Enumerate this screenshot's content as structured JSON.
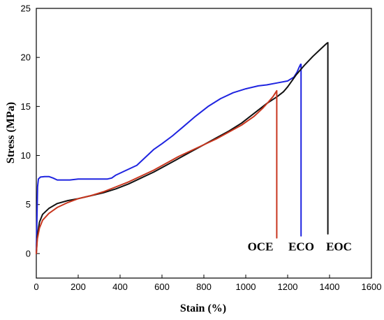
{
  "chart_data": {
    "type": "line",
    "title": "",
    "xlabel": "Stain (%)",
    "ylabel": "Stress (MPa)",
    "xlim": [
      0,
      1600
    ],
    "ylim": [
      -2.5,
      25
    ],
    "xticks": [
      0,
      200,
      400,
      600,
      800,
      1000,
      1200,
      1400,
      1600
    ],
    "yticks": [
      0,
      5,
      10,
      15,
      20,
      25
    ],
    "grid": false,
    "legend": "none",
    "series": [
      {
        "name": "ECO",
        "color": "#1f24e0",
        "x": [
          0,
          3,
          6,
          10,
          20,
          40,
          60,
          80,
          100,
          130,
          160,
          200,
          230,
          260,
          300,
          340,
          360,
          380,
          420,
          480,
          520,
          560,
          600,
          650,
          700,
          760,
          820,
          880,
          940,
          1000,
          1060,
          1100,
          1150,
          1200,
          1230,
          1245,
          1255,
          1262,
          1264,
          1264
        ],
        "y": [
          0,
          3.5,
          6.8,
          7.6,
          7.8,
          7.85,
          7.85,
          7.7,
          7.5,
          7.5,
          7.5,
          7.6,
          7.6,
          7.6,
          7.6,
          7.6,
          7.7,
          8.0,
          8.4,
          9.0,
          9.8,
          10.6,
          11.2,
          12.0,
          12.9,
          14.0,
          15.0,
          15.8,
          16.4,
          16.8,
          17.1,
          17.2,
          17.4,
          17.6,
          18.0,
          18.5,
          19.0,
          19.3,
          19.3,
          1.8
        ]
      },
      {
        "name": "EOC",
        "color": "#111111",
        "x": [
          0,
          5,
          15,
          30,
          60,
          100,
          150,
          200,
          260,
          320,
          380,
          440,
          500,
          560,
          620,
          680,
          740,
          800,
          860,
          920,
          980,
          1040,
          1100,
          1150,
          1180,
          1200,
          1240,
          1280,
          1320,
          1360,
          1385,
          1392,
          1392
        ],
        "y": [
          0,
          1.8,
          3.2,
          4.0,
          4.6,
          5.1,
          5.4,
          5.6,
          5.9,
          6.2,
          6.6,
          7.1,
          7.7,
          8.3,
          9.0,
          9.7,
          10.4,
          11.1,
          11.8,
          12.5,
          13.3,
          14.3,
          15.3,
          16.0,
          16.5,
          17.0,
          18.2,
          19.2,
          20.1,
          20.9,
          21.4,
          21.5,
          2.0
        ]
      },
      {
        "name": "OCE",
        "color": "#c8361e",
        "x": [
          0,
          5,
          15,
          30,
          60,
          100,
          150,
          200,
          260,
          320,
          380,
          440,
          500,
          560,
          620,
          680,
          740,
          800,
          860,
          920,
          980,
          1040,
          1080,
          1110,
          1130,
          1145,
          1148,
          1148
        ],
        "y": [
          0,
          1.5,
          2.6,
          3.4,
          4.1,
          4.7,
          5.2,
          5.6,
          5.9,
          6.3,
          6.8,
          7.3,
          7.9,
          8.5,
          9.2,
          9.9,
          10.5,
          11.1,
          11.7,
          12.4,
          13.1,
          14.0,
          14.8,
          15.5,
          16.0,
          16.5,
          16.6,
          1.6
        ]
      }
    ],
    "annotations": [
      {
        "text": "OCE",
        "x": 1070,
        "y": 0.3
      },
      {
        "text": "ECO",
        "x": 1265,
        "y": 0.3
      },
      {
        "text": "EOC",
        "x": 1445,
        "y": 0.3
      }
    ]
  }
}
